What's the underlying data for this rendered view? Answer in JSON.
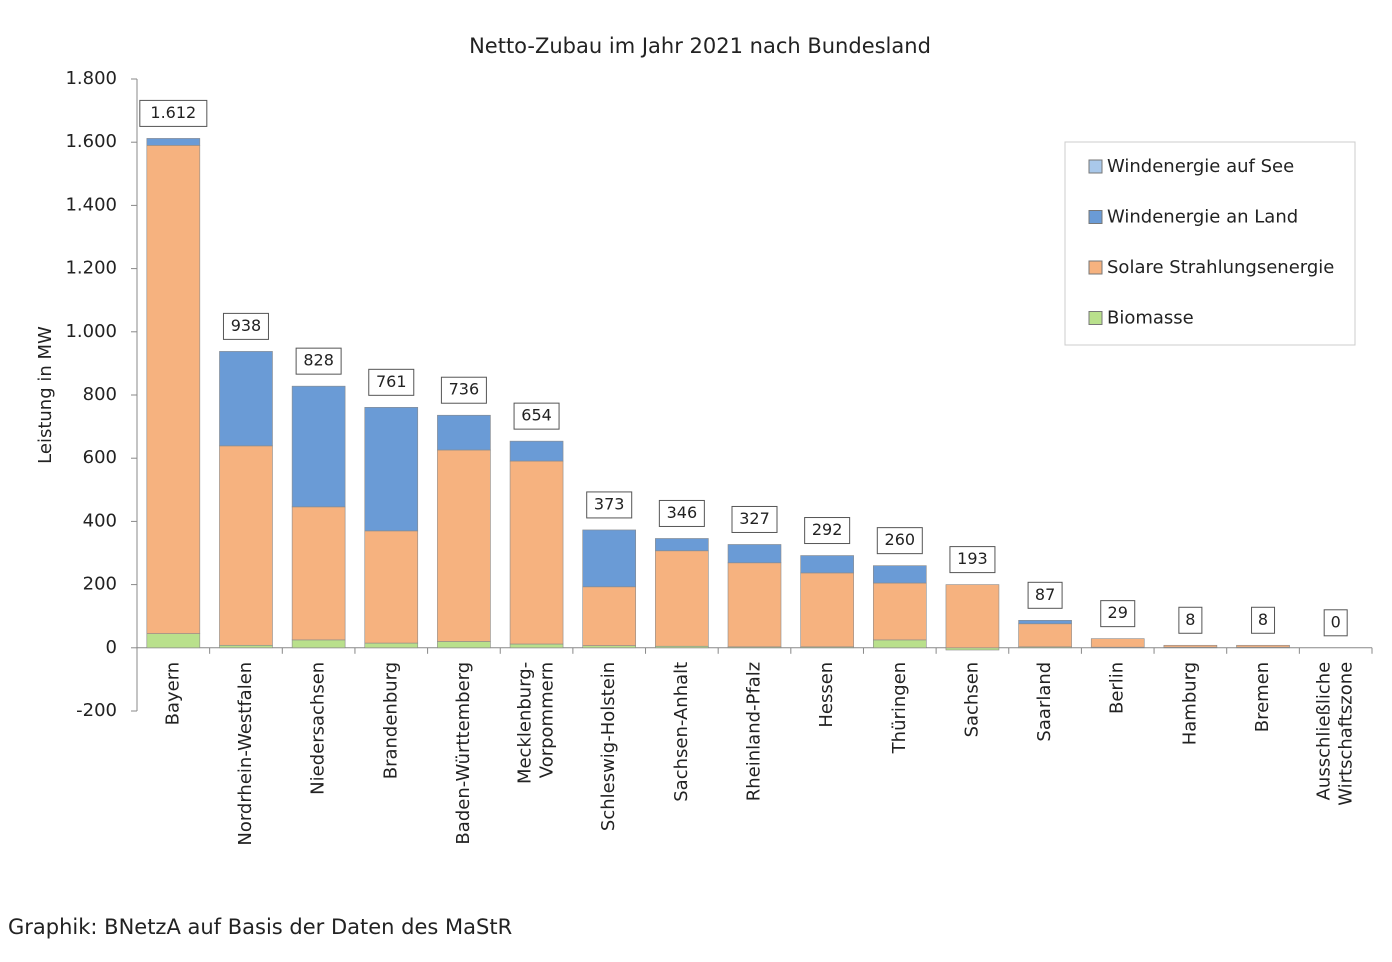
{
  "chart_data": {
    "type": "stacked-bar",
    "title": "Netto-Zubau im Jahr 2021 nach Bundesland",
    "y_label": "Leistung in MW",
    "source": "Graphik: BNetzA auf Basis der Daten des MaStR",
    "categories": [
      "Bayern",
      "Nordrhein-Westfalen",
      "Niedersachsen",
      "Brandenburg",
      "Baden-Württemberg",
      "Mecklenburg-\nVorpommern",
      "Schleswig-Holstein",
      "Sachsen-Anhalt",
      "Rheinland-Pfalz",
      "Hessen",
      "Thüringen",
      "Sachsen",
      "Saarland",
      "Berlin",
      "Hamburg",
      "Bremen",
      "Ausschließliche\nWirtschaftszone"
    ],
    "series": [
      {
        "name": "Biomasse",
        "color": "#b9e08c",
        "values": [
          45,
          8,
          25,
          15,
          20,
          12,
          7,
          5,
          3,
          3,
          25,
          -7,
          3,
          2,
          2,
          2,
          0
        ]
      },
      {
        "name": "Solare Strahlungsenergie",
        "color": "#f6b27f",
        "values": [
          1545,
          631,
          421,
          355,
          606,
          579,
          186,
          302,
          266,
          234,
          180,
          200,
          73,
          27,
          6,
          6,
          0
        ]
      },
      {
        "name": "Windenergie an Land",
        "color": "#6a9bd6",
        "values": [
          22,
          299,
          382,
          391,
          110,
          63,
          180,
          39,
          58,
          55,
          55,
          0,
          11,
          0,
          0,
          0,
          0
        ]
      },
      {
        "name": "Windenergie auf See",
        "color": "#a9c8ea",
        "values": [
          0,
          0,
          0,
          0,
          0,
          0,
          0,
          0,
          0,
          0,
          0,
          0,
          0,
          0,
          0,
          0,
          0
        ]
      }
    ],
    "totals": {
      "values": [
        1612,
        938,
        828,
        761,
        736,
        654,
        373,
        346,
        327,
        292,
        260,
        193,
        87,
        29,
        8,
        8,
        0
      ],
      "value_labels": [
        "1.612",
        "938",
        "828",
        "761",
        "736",
        "654",
        "373",
        "346",
        "327",
        "292",
        "260",
        "193",
        "87",
        "29",
        "8",
        "8",
        "0"
      ]
    },
    "ylim": [
      -200,
      1800
    ],
    "yticks": [
      -200,
      0,
      200,
      400,
      600,
      800,
      {
        "value": 1000,
        "label": "1.000"
      },
      {
        "value": 1200,
        "label": "1.200"
      },
      {
        "value": 1400,
        "label": "1.400"
      },
      {
        "value": 1600,
        "label": "1.600"
      },
      {
        "value": 1800,
        "label": "1.800"
      }
    ],
    "legend": "top-right"
  }
}
